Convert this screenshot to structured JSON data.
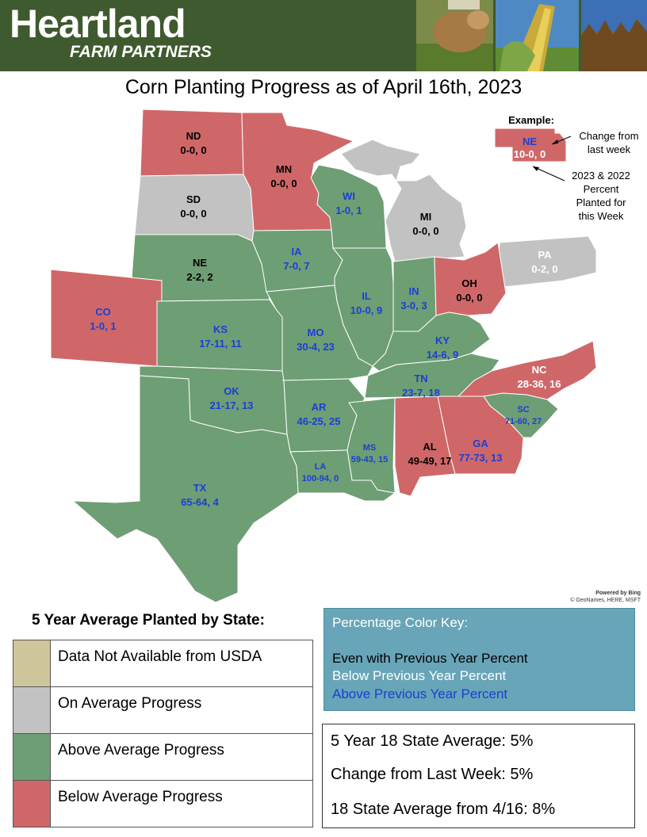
{
  "brand": {
    "name": "Heartland",
    "sub": "FARM PARTNERS",
    "photos": [
      "cow-photo",
      "corn-photo",
      "soybean-photo"
    ]
  },
  "title": "Corn Planting Progress as of April 16th, 2023",
  "colors": {
    "green": "#6e9e74",
    "red": "#cf6769",
    "gray": "#c2c2c2",
    "tan": "#cfc69c",
    "blue_text": "#1a3fd6",
    "white_text": "#ffffff",
    "black_text": "#000000"
  },
  "states": [
    {
      "abbr": "ND",
      "values": "0-0, 0",
      "fill": "red",
      "text": "black"
    },
    {
      "abbr": "MN",
      "values": "0-0, 0",
      "fill": "red",
      "text": "black"
    },
    {
      "abbr": "SD",
      "values": "0-0, 0",
      "fill": "gray",
      "text": "black"
    },
    {
      "abbr": "WI",
      "values": "1-0, 1",
      "fill": "green",
      "text": "blue"
    },
    {
      "abbr": "MI",
      "values": "0-0, 0",
      "fill": "gray",
      "text": "black"
    },
    {
      "abbr": "NE",
      "values": "2-2, 2",
      "fill": "green",
      "text": "black"
    },
    {
      "abbr": "IA",
      "values": "7-0, 7",
      "fill": "green",
      "text": "blue"
    },
    {
      "abbr": "PA",
      "values": "0-2, 0",
      "fill": "gray",
      "text": "white"
    },
    {
      "abbr": "IL",
      "values": "10-0, 9",
      "fill": "green",
      "text": "blue"
    },
    {
      "abbr": "IN",
      "values": "3-0, 3",
      "fill": "green",
      "text": "blue"
    },
    {
      "abbr": "OH",
      "values": "0-0, 0",
      "fill": "red",
      "text": "black"
    },
    {
      "abbr": "CO",
      "values": "1-0, 1",
      "fill": "red",
      "text": "blue"
    },
    {
      "abbr": "KS",
      "values": "17-11, 11",
      "fill": "green",
      "text": "blue"
    },
    {
      "abbr": "MO",
      "values": "30-4, 23",
      "fill": "green",
      "text": "blue"
    },
    {
      "abbr": "KY",
      "values": "14-6, 9",
      "fill": "green",
      "text": "blue"
    },
    {
      "abbr": "NC",
      "values": "28-36, 16",
      "fill": "red",
      "text": "white"
    },
    {
      "abbr": "TN",
      "values": "23-7, 18",
      "fill": "green",
      "text": "blue"
    },
    {
      "abbr": "OK",
      "values": "21-17, 13",
      "fill": "green",
      "text": "blue"
    },
    {
      "abbr": "AR",
      "values": "46-25, 25",
      "fill": "green",
      "text": "blue"
    },
    {
      "abbr": "SC",
      "values": "71-60, 27",
      "fill": "green",
      "text": "blue"
    },
    {
      "abbr": "MS",
      "values": "59-43, 15",
      "fill": "green",
      "text": "blue"
    },
    {
      "abbr": "AL",
      "values": "49-49, 17",
      "fill": "red",
      "text": "black"
    },
    {
      "abbr": "GA",
      "values": "77-73, 13",
      "fill": "red",
      "text": "blue"
    },
    {
      "abbr": "LA",
      "values": "100-94, 0",
      "fill": "green",
      "text": "blue"
    },
    {
      "abbr": "TX",
      "values": "65-64, 4",
      "fill": "green",
      "text": "blue"
    }
  ],
  "example": {
    "heading": "Example:",
    "abbr": "NE",
    "values": "10-0, 0",
    "note_change": [
      "Change from",
      "last week"
    ],
    "note_percent": [
      "2023 & 2022",
      "Percent",
      "Planted for",
      "this Week"
    ]
  },
  "credit": [
    "Powered by Bing",
    "© GeoNames, HERE, MSFT"
  ],
  "legend": {
    "title": "5 Year Average Planted by State:",
    "items": [
      {
        "color": "tan",
        "label": "Data Not Available from USDA"
      },
      {
        "color": "gray",
        "label": "On Average Progress"
      },
      {
        "color": "green",
        "label": "Above Average Progress"
      },
      {
        "color": "red",
        "label": "Below Average Progress"
      }
    ]
  },
  "color_key": {
    "title": "Percentage Color Key:",
    "lines": [
      {
        "text": "Even with Previous Year Percent",
        "color": "black"
      },
      {
        "text": "Below Previous Year Percent",
        "color": "white"
      },
      {
        "text": "Above Previous Year Percent",
        "color": "blue"
      }
    ]
  },
  "stats": [
    "5 Year 18 State Average:  5%",
    "Change from Last Week:  5%",
    "18 State Average from 4/16:  8%"
  ]
}
